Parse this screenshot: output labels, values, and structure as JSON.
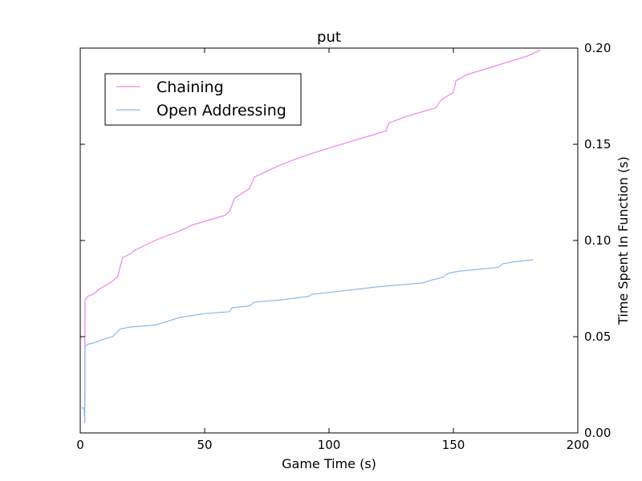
{
  "chart_data": {
    "type": "line",
    "title": "put",
    "xlabel": "Game Time (s)",
    "ylabel": "Time Spent In Function (s)",
    "xlim": [
      0,
      200
    ],
    "ylim": [
      0,
      0.2
    ],
    "x_ticks": [
      0,
      50,
      100,
      150,
      200
    ],
    "x_tick_labels": [
      "0",
      "50",
      "100",
      "150",
      "200"
    ],
    "y_ticks": [
      0.0,
      0.05,
      0.1,
      0.15,
      0.2
    ],
    "y_tick_labels": [
      "0.00",
      "0.05",
      "0.10",
      "0.15",
      "0.20"
    ],
    "y_axis_side": "right",
    "grid": false,
    "legend_position": "upper-left",
    "series": [
      {
        "name": "Chaining",
        "color": "#ee82ee",
        "points": [
          [
            1.8,
            0.005
          ],
          [
            1.9,
            0.069
          ],
          [
            2.5,
            0.07
          ],
          [
            3,
            0.071
          ],
          [
            5,
            0.072
          ],
          [
            8,
            0.075
          ],
          [
            12,
            0.078
          ],
          [
            15,
            0.081
          ],
          [
            17,
            0.091
          ],
          [
            20,
            0.093
          ],
          [
            22,
            0.095
          ],
          [
            30,
            0.1
          ],
          [
            40,
            0.105
          ],
          [
            45,
            0.108
          ],
          [
            50,
            0.11
          ],
          [
            58,
            0.113
          ],
          [
            60,
            0.115
          ],
          [
            62,
            0.122
          ],
          [
            68,
            0.127
          ],
          [
            70,
            0.133
          ],
          [
            75,
            0.136
          ],
          [
            80,
            0.139
          ],
          [
            88,
            0.143
          ],
          [
            95,
            0.146
          ],
          [
            100,
            0.148
          ],
          [
            110,
            0.152
          ],
          [
            118,
            0.155
          ],
          [
            123,
            0.157
          ],
          [
            124,
            0.161
          ],
          [
            130,
            0.164
          ],
          [
            135,
            0.166
          ],
          [
            143,
            0.169
          ],
          [
            145,
            0.173
          ],
          [
            150,
            0.177
          ],
          [
            151,
            0.183
          ],
          [
            155,
            0.186
          ],
          [
            165,
            0.19
          ],
          [
            175,
            0.194
          ],
          [
            180,
            0.196
          ],
          [
            185,
            0.199
          ]
        ]
      },
      {
        "name": "Open Addressing",
        "color": "#87b9e6",
        "points": [
          [
            0,
            0.013
          ],
          [
            1.5,
            0.013
          ],
          [
            1.8,
            0.006
          ],
          [
            1.9,
            0.045
          ],
          [
            3,
            0.046
          ],
          [
            6,
            0.047
          ],
          [
            10,
            0.049
          ],
          [
            13,
            0.05
          ],
          [
            16,
            0.054
          ],
          [
            20,
            0.055
          ],
          [
            30,
            0.056
          ],
          [
            35,
            0.058
          ],
          [
            40,
            0.06
          ],
          [
            50,
            0.062
          ],
          [
            60,
            0.063
          ],
          [
            61,
            0.065
          ],
          [
            68,
            0.066
          ],
          [
            70,
            0.068
          ],
          [
            80,
            0.069
          ],
          [
            92,
            0.071
          ],
          [
            93,
            0.072
          ],
          [
            100,
            0.073
          ],
          [
            120,
            0.076
          ],
          [
            138,
            0.078
          ],
          [
            140,
            0.079
          ],
          [
            146,
            0.081
          ],
          [
            148,
            0.083
          ],
          [
            152,
            0.084
          ],
          [
            168,
            0.086
          ],
          [
            170,
            0.088
          ],
          [
            175,
            0.089
          ],
          [
            182,
            0.09
          ]
        ]
      }
    ]
  }
}
